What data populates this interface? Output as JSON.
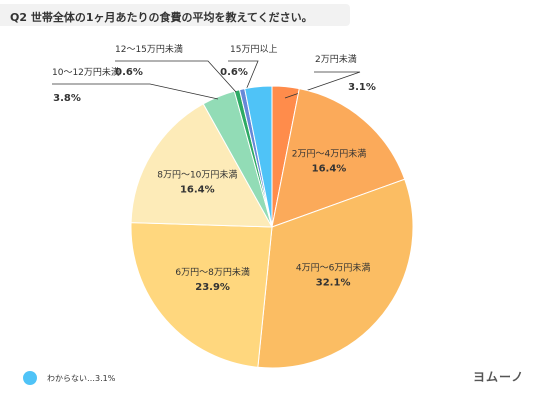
{
  "title": "Q2 世帯全体の1ヶ月あたりの食費の平均を教えてください。",
  "brand": "ヨムーノ",
  "legend": {
    "label": "わからない…3.1%",
    "color": "#4fc3f7"
  },
  "chart_data": {
    "type": "pie",
    "title": "Q2 世帯全体の1ヶ月あたりの食費の平均を教えてください。",
    "slices": [
      {
        "label": "2万円未満",
        "value": 3.1,
        "display": "3.1%",
        "color": "#ff8c4b"
      },
      {
        "label": "2万円〜4万円未満",
        "value": 16.4,
        "display": "16.4%",
        "color": "#fbaa5a"
      },
      {
        "label": "4万円〜6万円未満",
        "value": 32.1,
        "display": "32.1%",
        "color": "#fbbd63"
      },
      {
        "label": "6万円〜8万円未満",
        "value": 23.9,
        "display": "23.9%",
        "color": "#ffd77e"
      },
      {
        "label": "8万円〜10万円未満",
        "value": 16.4,
        "display": "16.4%",
        "color": "#fdebb8"
      },
      {
        "label": "10〜12万円未満",
        "value": 3.8,
        "display": "3.8%",
        "color": "#92dcb6"
      },
      {
        "label": "12〜15万円未満",
        "value": 0.6,
        "display": "0.6%",
        "color": "#2daa64"
      },
      {
        "label": "15万円以上",
        "value": 0.6,
        "display": "0.6%",
        "color": "#6688d8"
      },
      {
        "label": "わからない",
        "value": 3.1,
        "display": "3.1%",
        "color": "#4fc3f7"
      }
    ]
  }
}
